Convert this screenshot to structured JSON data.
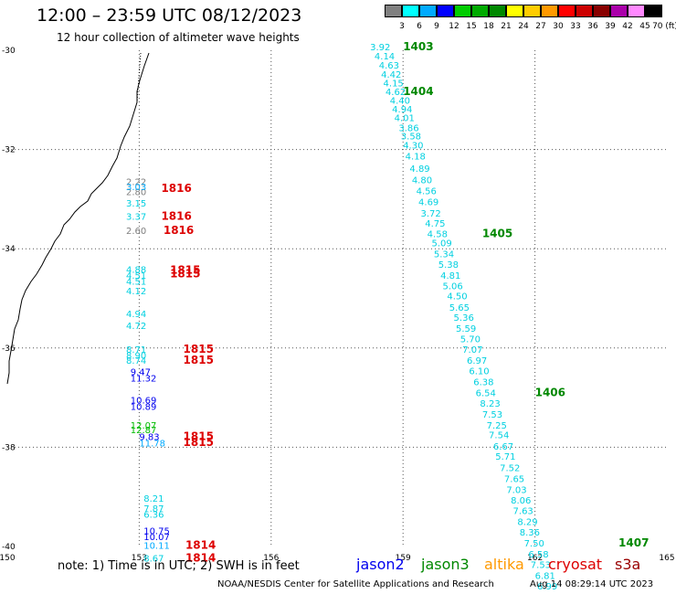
{
  "title": "12:00 – 23:59 UTC 08/12/2023",
  "subtitle": "12 hour collection of altimeter wave heights",
  "note": "note: 1) Time is in UTC; 2) SWH is in feet",
  "credit": "NOAA/NESDIS Center for Satellite Applications and Research",
  "timestamp": "Aug 14 08:29:14 UTC 2023",
  "missions": [
    {
      "name": "jason2",
      "color": "#0000ee"
    },
    {
      "name": "jason3",
      "color": "#008800"
    },
    {
      "name": "altika",
      "color": "#ff9900"
    },
    {
      "name": "cryosat",
      "color": "#dd0000"
    },
    {
      "name": "s3a",
      "color": "#990000"
    }
  ],
  "scale": {
    "labels": [
      "3",
      "6",
      "9",
      "12",
      "15",
      "18",
      "21",
      "24",
      "27",
      "30",
      "33",
      "36",
      "39",
      "42",
      "45",
      "70 (ft)"
    ],
    "colors": [
      "#808080",
      "#00ffff",
      "#00aaff",
      "#0000ff",
      "#00cc00",
      "#00aa00",
      "#008800",
      "#ffff00",
      "#ffcc00",
      "#ff9900",
      "#ff0000",
      "#cc0000",
      "#880000",
      "#aa00aa",
      "#ff88ff",
      "#000000"
    ]
  },
  "map": {
    "lon_range": [
      150,
      165
    ],
    "lat_range": [
      -40,
      -30
    ],
    "lon_labels": [
      "150",
      "153",
      "156",
      "159",
      "162",
      "165"
    ],
    "lat_labels": [
      "-30",
      "-32",
      "-34",
      "-36",
      "-38",
      "-40"
    ]
  },
  "tracks": [
    {
      "color": "#00d0e0",
      "points": [
        {
          "lon": 158.25,
          "lat": -30.0,
          "value": "3.92"
        },
        {
          "lon": 158.35,
          "lat": -30.18,
          "value": "4.14"
        },
        {
          "lon": 158.45,
          "lat": -30.37,
          "value": "4.63"
        },
        {
          "lon": 158.5,
          "lat": -30.55,
          "value": "4.42"
        },
        {
          "lon": 158.55,
          "lat": -30.73,
          "value": "4.15"
        },
        {
          "lon": 158.6,
          "lat": -30.9,
          "value": "4.62"
        },
        {
          "lon": 158.7,
          "lat": -31.08,
          "value": "4.40"
        },
        {
          "lon": 158.75,
          "lat": -31.25,
          "value": "4.94"
        },
        {
          "lon": 158.8,
          "lat": -31.43,
          "value": "4.01"
        },
        {
          "lon": 158.9,
          "lat": -31.63,
          "value": "3.86"
        },
        {
          "lon": 158.95,
          "lat": -31.8,
          "value": "3.58"
        },
        {
          "lon": 159.0,
          "lat": -31.98,
          "value": "4.30"
        },
        {
          "lon": 159.05,
          "lat": -32.2,
          "value": "4.18"
        },
        {
          "lon": 159.15,
          "lat": -32.45,
          "value": "4.89"
        },
        {
          "lon": 159.2,
          "lat": -32.68,
          "value": "4.80"
        },
        {
          "lon": 159.3,
          "lat": -32.9,
          "value": "4.56"
        },
        {
          "lon": 159.35,
          "lat": -33.12,
          "value": "4.69"
        },
        {
          "lon": 159.4,
          "lat": -33.35,
          "value": "3.72"
        },
        {
          "lon": 159.5,
          "lat": -33.55,
          "value": "4.75"
        },
        {
          "lon": 159.55,
          "lat": -33.77,
          "value": "4.58"
        },
        {
          "lon": 159.65,
          "lat": -33.95,
          "value": "5.09"
        },
        {
          "lon": 159.7,
          "lat": -34.17,
          "value": "5.34"
        },
        {
          "lon": 159.8,
          "lat": -34.38,
          "value": "5.38"
        },
        {
          "lon": 159.85,
          "lat": -34.6,
          "value": "4.81"
        },
        {
          "lon": 159.9,
          "lat": -34.82,
          "value": "5.06"
        },
        {
          "lon": 160.0,
          "lat": -35.02,
          "value": "4.50"
        },
        {
          "lon": 160.05,
          "lat": -35.25,
          "value": "5.65"
        },
        {
          "lon": 160.15,
          "lat": -35.45,
          "value": "5.36"
        },
        {
          "lon": 160.2,
          "lat": -35.67,
          "value": "5.59"
        },
        {
          "lon": 160.3,
          "lat": -35.88,
          "value": "5.70"
        },
        {
          "lon": 160.35,
          "lat": -36.1,
          "value": "7.07"
        },
        {
          "lon": 160.45,
          "lat": -36.32,
          "value": "6.97"
        },
        {
          "lon": 160.5,
          "lat": -36.53,
          "value": "6.10"
        },
        {
          "lon": 160.6,
          "lat": -36.75,
          "value": "6.38"
        },
        {
          "lon": 160.65,
          "lat": -36.97,
          "value": "6.54"
        },
        {
          "lon": 160.75,
          "lat": -37.18,
          "value": "8.23"
        },
        {
          "lon": 160.8,
          "lat": -37.4,
          "value": "7.53"
        },
        {
          "lon": 160.9,
          "lat": -37.62,
          "value": "7.25"
        },
        {
          "lon": 160.95,
          "lat": -37.82,
          "value": "7.54"
        },
        {
          "lon": 161.05,
          "lat": -38.05,
          "value": "6.67"
        },
        {
          "lon": 161.1,
          "lat": -38.25,
          "value": "5.71"
        },
        {
          "lon": 161.2,
          "lat": -38.48,
          "value": "7.52"
        },
        {
          "lon": 161.3,
          "lat": -38.7,
          "value": "7.65"
        },
        {
          "lon": 161.35,
          "lat": -38.92,
          "value": "7.03"
        },
        {
          "lon": 161.45,
          "lat": -39.13,
          "value": "8.06"
        },
        {
          "lon": 161.5,
          "lat": -39.35,
          "value": "7.63"
        },
        {
          "lon": 161.6,
          "lat": -39.57,
          "value": "8.29"
        },
        {
          "lon": 161.65,
          "lat": -39.78,
          "value": "8.36"
        },
        {
          "lon": 161.75,
          "lat": -40.0,
          "value": "7.50"
        },
        {
          "lon": 161.85,
          "lat": -40.22,
          "value": "6.58"
        },
        {
          "lon": 161.9,
          "lat": -40.43,
          "value": "7.53"
        },
        {
          "lon": 162.0,
          "lat": -40.65,
          "value": "6.81"
        },
        {
          "lon": 162.05,
          "lat": -40.87,
          "value": "6.99"
        }
      ]
    },
    {
      "color": "#00d0e0",
      "points": [
        {
          "lon": 152.7,
          "lat": -33.15,
          "value": "3.15"
        },
        {
          "lon": 152.7,
          "lat": -33.42,
          "value": "3.37"
        },
        {
          "lon": 152.7,
          "lat": -34.48,
          "value": "4.88"
        },
        {
          "lon": 152.7,
          "lat": -34.6,
          "value": "4.51"
        },
        {
          "lon": 152.7,
          "lat": -34.72,
          "value": "4.51"
        },
        {
          "lon": 152.7,
          "lat": -34.92,
          "value": "4.12"
        },
        {
          "lon": 152.7,
          "lat": -35.38,
          "value": "4.94"
        },
        {
          "lon": 152.7,
          "lat": -35.62,
          "value": "4.72"
        },
        {
          "lon": 152.7,
          "lat": -36.1,
          "value": "8.71"
        },
        {
          "lon": 152.7,
          "lat": -36.22,
          "value": "8.90"
        },
        {
          "lon": 152.7,
          "lat": -36.32,
          "value": "8.74"
        },
        {
          "lon": 153.1,
          "lat": -39.1,
          "value": "8.21"
        },
        {
          "lon": 153.1,
          "lat": -39.3,
          "value": "7.87"
        },
        {
          "lon": 153.1,
          "lat": -39.42,
          "value": "6.36"
        },
        {
          "lon": 153.1,
          "lat": -40.3,
          "value": "8.67"
        }
      ]
    },
    {
      "color": "#808080",
      "points": [
        {
          "lon": 152.7,
          "lat": -32.72,
          "value": "2.22"
        },
        {
          "lon": 152.7,
          "lat": -32.92,
          "value": "2.80"
        },
        {
          "lon": 152.7,
          "lat": -33.7,
          "value": "2.60"
        }
      ]
    },
    {
      "color": "#00aaff",
      "points": [
        {
          "lon": 152.7,
          "lat": -32.82,
          "value": "3.03"
        },
        {
          "lon": 153.0,
          "lat": -37.98,
          "value": "11.78"
        },
        {
          "lon": 153.1,
          "lat": -40.05,
          "value": "10.11"
        }
      ]
    },
    {
      "color": "#0000ee",
      "points": [
        {
          "lon": 152.8,
          "lat": -36.55,
          "value": "9.47"
        },
        {
          "lon": 152.8,
          "lat": -36.68,
          "value": "11.32"
        },
        {
          "lon": 152.8,
          "lat": -37.12,
          "value": "10.69"
        },
        {
          "lon": 152.8,
          "lat": -37.25,
          "value": "10.89"
        },
        {
          "lon": 153.0,
          "lat": -37.85,
          "value": "9.83"
        },
        {
          "lon": 153.1,
          "lat": -39.75,
          "value": "10.75"
        },
        {
          "lon": 153.1,
          "lat": -39.87,
          "value": "10.07"
        }
      ]
    },
    {
      "color": "#00bb00",
      "points": [
        {
          "lon": 152.8,
          "lat": -37.62,
          "value": "12.07"
        },
        {
          "lon": 152.8,
          "lat": -37.72,
          "value": "12.87"
        }
      ]
    }
  ],
  "time_labels": [
    {
      "lon": 159.0,
      "lat": -30.0,
      "value": "1403",
      "color": "#008800"
    },
    {
      "lon": 159.0,
      "lat": -30.9,
      "value": "1404",
      "color": "#008800"
    },
    {
      "lon": 160.8,
      "lat": -33.77,
      "value": "1405",
      "color": "#008800"
    },
    {
      "lon": 162.0,
      "lat": -36.97,
      "value": "1406",
      "color": "#008800"
    },
    {
      "lon": 163.9,
      "lat": -40.0,
      "value": "1407",
      "color": "#008800"
    },
    {
      "lon": 153.5,
      "lat": -32.85,
      "value": "1816",
      "color": "#dd0000"
    },
    {
      "lon": 153.5,
      "lat": -33.42,
      "value": "1816",
      "color": "#dd0000"
    },
    {
      "lon": 153.55,
      "lat": -33.7,
      "value": "1816",
      "color": "#dd0000"
    },
    {
      "lon": 153.7,
      "lat": -34.5,
      "value": "1815",
      "color": "#dd0000"
    },
    {
      "lon": 153.7,
      "lat": -34.58,
      "value": "1815",
      "color": "#dd0000"
    },
    {
      "lon": 154.0,
      "lat": -36.1,
      "value": "1815",
      "color": "#dd0000"
    },
    {
      "lon": 154.0,
      "lat": -36.32,
      "value": "1815",
      "color": "#dd0000"
    },
    {
      "lon": 154.0,
      "lat": -37.85,
      "value": "1815",
      "color": "#dd0000"
    },
    {
      "lon": 154.0,
      "lat": -37.97,
      "value": "1815",
      "color": "#dd0000"
    },
    {
      "lon": 154.05,
      "lat": -40.05,
      "value": "1814",
      "color": "#dd0000"
    },
    {
      "lon": 154.05,
      "lat": -40.3,
      "value": "1814",
      "color": "#dd0000"
    }
  ]
}
